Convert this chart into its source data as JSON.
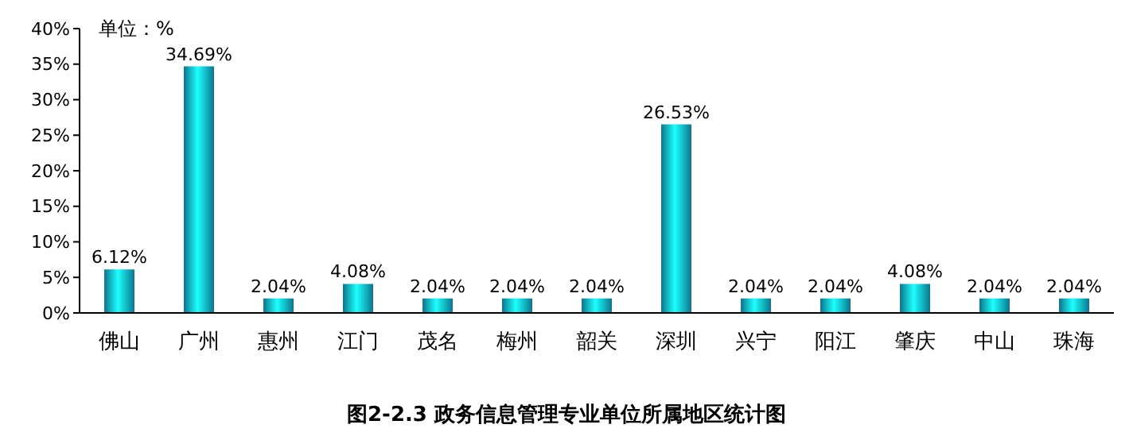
{
  "chart_data": {
    "type": "bar",
    "title": "图2-2.3 政务信息管理专业单位所属地区统计图",
    "annotations": [
      "单位：%"
    ],
    "categories": [
      "佛山",
      "广州",
      "惠州",
      "江门",
      "茂名",
      "梅州",
      "韶关",
      "深圳",
      "兴宁",
      "阳江",
      "肇庆",
      "中山",
      "珠海"
    ],
    "values": [
      6.12,
      34.69,
      2.04,
      4.08,
      2.04,
      2.04,
      2.04,
      26.53,
      2.04,
      2.04,
      4.08,
      2.04,
      2.04
    ],
    "value_labels": [
      "6.12%",
      "34.69%",
      "2.04%",
      "4.08%",
      "2.04%",
      "2.04%",
      "2.04%",
      "26.53%",
      "2.04%",
      "2.04%",
      "4.08%",
      "2.04%",
      "2.04%"
    ],
    "color": "#12b4d8",
    "ylim": [
      0,
      40
    ],
    "yticks": [
      {
        "value": 0,
        "label": "0%"
      },
      {
        "value": 5,
        "label": "5%"
      },
      {
        "value": 10,
        "label": "10%"
      },
      {
        "value": 15,
        "label": "15%"
      },
      {
        "value": 20,
        "label": "20%"
      },
      {
        "value": 25,
        "label": "25%"
      },
      {
        "value": 30,
        "label": "30%"
      },
      {
        "value": 35,
        "label": "35%"
      },
      {
        "value": 40,
        "label": "40%"
      }
    ],
    "grid": false
  }
}
